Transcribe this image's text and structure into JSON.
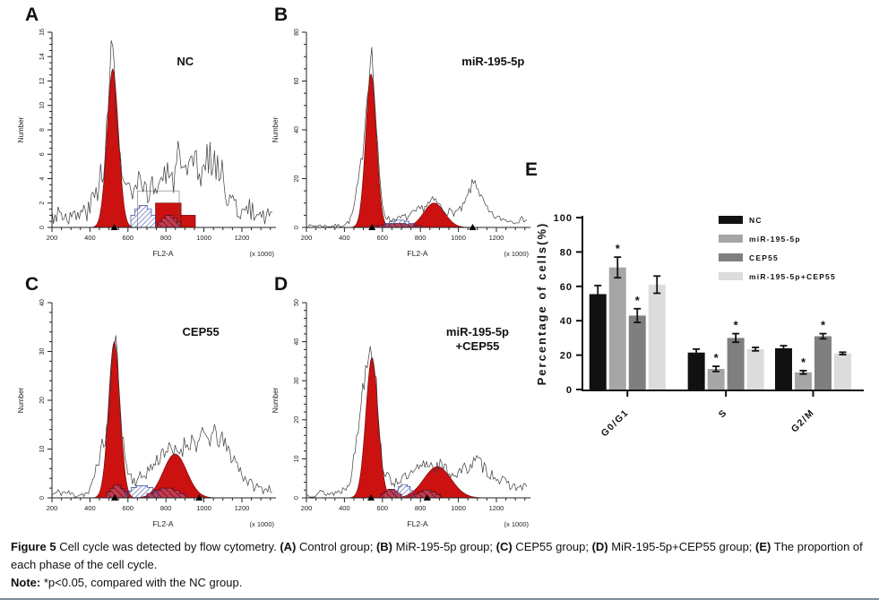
{
  "figure": {
    "panel_letters": [
      "A",
      "B",
      "C",
      "D",
      "E"
    ],
    "caption_segments": [
      {
        "text": "Figure 5 ",
        "bold": true
      },
      {
        "text": "Cell cycle was detected by flow cytometry. ",
        "bold": false
      },
      {
        "text": "(A)",
        "bold": true
      },
      {
        "text": " Control group; ",
        "bold": false
      },
      {
        "text": "(B)",
        "bold": true
      },
      {
        "text": " MiR-195-5p group; ",
        "bold": false
      },
      {
        "text": "(C)",
        "bold": true
      },
      {
        "text": " CEP55 group; ",
        "bold": false
      },
      {
        "text": "(D)",
        "bold": true
      },
      {
        "text": " MiR-195-5p+CEP55 group; ",
        "bold": false
      },
      {
        "text": "(E)",
        "bold": true
      },
      {
        "text": " The proportion of each phase of the cell cycle.",
        "bold": false
      }
    ],
    "note_segments": [
      {
        "text": "Note: ",
        "bold": true
      },
      {
        "text": "*p<0.05, compared with the NC group.",
        "bold": false
      }
    ]
  },
  "colors": {
    "histogram_fill": "#cc1111",
    "histogram_edge": "#6b0606",
    "s_phase_hatch": "#4f5fb2",
    "aggregate_fill": "#c23d52",
    "trace": "#3c3c3c",
    "axis": "#222222"
  },
  "chart_data": [
    {
      "type": "histogram",
      "panel": "A",
      "label_lines": [
        "NC"
      ],
      "ylabel": "Number",
      "xlabel": "FL2-A",
      "x_unit": "(x 1000)",
      "xlim": [
        200,
        1370
      ],
      "xticks": [
        200,
        400,
        600,
        800,
        1000,
        1200
      ],
      "ymax": 16,
      "yticks": [
        0,
        2,
        4,
        6,
        8,
        10,
        12,
        14,
        16
      ],
      "yminor": 4,
      "g1": {
        "center": 520,
        "sigma": 30,
        "height": 13
      },
      "g2": null,
      "red_blocks": [
        [
          745,
          880,
          2
        ],
        [
          880,
          955,
          1
        ]
      ],
      "dark_blocks": [
        [
          757,
          878,
          1
        ]
      ],
      "s_block": [
        615,
        745,
        1.8
      ],
      "outline_box": [
        650,
        870,
        3
      ],
      "markers": [
        528
      ],
      "envelope": [
        [
          200,
          1
        ],
        [
          240,
          1.3
        ],
        [
          280,
          1
        ],
        [
          320,
          0.8
        ],
        [
          360,
          1.2
        ],
        [
          400,
          1.5
        ],
        [
          420,
          2.5
        ],
        [
          440,
          3
        ],
        [
          460,
          5
        ],
        [
          480,
          6
        ],
        [
          500,
          10
        ],
        [
          515,
          15
        ],
        [
          525,
          14
        ],
        [
          540,
          9
        ],
        [
          560,
          5
        ],
        [
          575,
          4
        ],
        [
          600,
          3
        ],
        [
          620,
          2.5
        ],
        [
          640,
          3
        ],
        [
          660,
          3.5
        ],
        [
          680,
          2.5
        ],
        [
          700,
          3
        ],
        [
          720,
          3.5
        ],
        [
          740,
          3
        ],
        [
          760,
          3.5
        ],
        [
          780,
          4
        ],
        [
          800,
          4.5
        ],
        [
          820,
          3.5
        ],
        [
          840,
          4
        ],
        [
          860,
          7
        ],
        [
          875,
          5
        ],
        [
          890,
          3.5
        ],
        [
          910,
          4
        ],
        [
          930,
          4.5
        ],
        [
          950,
          6
        ],
        [
          970,
          4
        ],
        [
          990,
          4.5
        ],
        [
          1010,
          5.5
        ],
        [
          1030,
          6
        ],
        [
          1050,
          5
        ],
        [
          1070,
          5.5
        ],
        [
          1090,
          4.5
        ],
        [
          1110,
          3.5
        ],
        [
          1130,
          2.5
        ],
        [
          1150,
          2
        ],
        [
          1180,
          1.5
        ],
        [
          1210,
          1.2
        ],
        [
          1240,
          1.5
        ],
        [
          1270,
          1
        ],
        [
          1300,
          1.2
        ],
        [
          1330,
          1
        ],
        [
          1360,
          1.5
        ]
      ]
    },
    {
      "type": "histogram",
      "panel": "B",
      "label_lines": [
        "miR-195-5p"
      ],
      "ylabel": "Number",
      "xlabel": "FL2-A",
      "x_unit": "(x 1000)",
      "xlim": [
        200,
        1370
      ],
      "xticks": [
        200,
        400,
        600,
        800,
        1000,
        1200
      ],
      "ymax": 80,
      "yticks": [
        0,
        20,
        40,
        60,
        80
      ],
      "yminor": 4,
      "g1": {
        "center": 540,
        "sigma": 28,
        "height": 63
      },
      "g2": {
        "center": 872,
        "sigma": 55,
        "height": 10
      },
      "red_blocks": [],
      "dark_blocks": [
        [
          557,
          808,
          1.6
        ]
      ],
      "s_block": [
        612,
        765,
        3
      ],
      "outline_box": null,
      "markers": [
        545,
        1075
      ],
      "envelope": [
        [
          200,
          0.5
        ],
        [
          260,
          0.8
        ],
        [
          320,
          0.5
        ],
        [
          380,
          0.8
        ],
        [
          410,
          1.5
        ],
        [
          430,
          3
        ],
        [
          450,
          8
        ],
        [
          465,
          15
        ],
        [
          480,
          22
        ],
        [
          495,
          30
        ],
        [
          510,
          45
        ],
        [
          525,
          58
        ],
        [
          540,
          76
        ],
        [
          552,
          62
        ],
        [
          565,
          45
        ],
        [
          580,
          25
        ],
        [
          595,
          12
        ],
        [
          610,
          6
        ],
        [
          630,
          3.5
        ],
        [
          650,
          3
        ],
        [
          670,
          4
        ],
        [
          690,
          3.5
        ],
        [
          710,
          4.5
        ],
        [
          730,
          4
        ],
        [
          750,
          5
        ],
        [
          770,
          6
        ],
        [
          790,
          7
        ],
        [
          810,
          8
        ],
        [
          830,
          9
        ],
        [
          850,
          10
        ],
        [
          870,
          11
        ],
        [
          890,
          10
        ],
        [
          910,
          8
        ],
        [
          930,
          7
        ],
        [
          950,
          6.5
        ],
        [
          970,
          6
        ],
        [
          990,
          6.5
        ],
        [
          1010,
          7
        ],
        [
          1030,
          9
        ],
        [
          1050,
          13
        ],
        [
          1070,
          17
        ],
        [
          1090,
          19
        ],
        [
          1105,
          16
        ],
        [
          1120,
          12
        ],
        [
          1140,
          9
        ],
        [
          1160,
          6
        ],
        [
          1180,
          5
        ],
        [
          1200,
          4
        ],
        [
          1230,
          3.5
        ],
        [
          1260,
          3
        ],
        [
          1290,
          2.5
        ],
        [
          1320,
          3
        ],
        [
          1350,
          3.5
        ]
      ]
    },
    {
      "type": "histogram",
      "panel": "C",
      "label_lines": [
        "CEP55"
      ],
      "ylabel": "Number",
      "xlabel": "FL2-A",
      "x_unit": "(x 1000)",
      "xlim": [
        200,
        1370
      ],
      "xticks": [
        200,
        400,
        600,
        800,
        1000,
        1200
      ],
      "ymax": 40,
      "yticks": [
        0,
        10,
        20,
        30,
        40
      ],
      "yminor": 5,
      "g1": {
        "center": 528,
        "sigma": 30,
        "height": 32
      },
      "g2": {
        "center": 848,
        "sigma": 62,
        "height": 9
      },
      "red_blocks": [],
      "dark_blocks": [
        [
          487,
          600,
          2.6
        ],
        [
          700,
          905,
          2
        ]
      ],
      "s_block": [
        588,
        760,
        2.5
      ],
      "outline_box": null,
      "markers": [
        530,
        975
      ],
      "envelope": [
        [
          200,
          0.6
        ],
        [
          240,
          1.2
        ],
        [
          280,
          1
        ],
        [
          320,
          0.6
        ],
        [
          360,
          0.8
        ],
        [
          395,
          1
        ],
        [
          415,
          3
        ],
        [
          435,
          7
        ],
        [
          455,
          9
        ],
        [
          470,
          11
        ],
        [
          485,
          13
        ],
        [
          500,
          17
        ],
        [
          515,
          26
        ],
        [
          528,
          33
        ],
        [
          540,
          30
        ],
        [
          555,
          22
        ],
        [
          570,
          13
        ],
        [
          585,
          8
        ],
        [
          600,
          5.5
        ],
        [
          620,
          4
        ],
        [
          640,
          3.5
        ],
        [
          660,
          4
        ],
        [
          680,
          4.5
        ],
        [
          700,
          5.5
        ],
        [
          720,
          6
        ],
        [
          740,
          7
        ],
        [
          760,
          8
        ],
        [
          780,
          9.5
        ],
        [
          800,
          10
        ],
        [
          820,
          9.5
        ],
        [
          840,
          9
        ],
        [
          860,
          9.5
        ],
        [
          880,
          10
        ],
        [
          900,
          11
        ],
        [
          920,
          11.5
        ],
        [
          940,
          12
        ],
        [
          960,
          11
        ],
        [
          980,
          11.5
        ],
        [
          1000,
          13
        ],
        [
          1020,
          12
        ],
        [
          1040,
          12.5
        ],
        [
          1060,
          13
        ],
        [
          1080,
          12
        ],
        [
          1100,
          11.5
        ],
        [
          1120,
          10
        ],
        [
          1140,
          9
        ],
        [
          1160,
          8
        ],
        [
          1180,
          6.5
        ],
        [
          1200,
          5
        ],
        [
          1220,
          4
        ],
        [
          1240,
          3
        ],
        [
          1260,
          2.5
        ],
        [
          1290,
          2
        ],
        [
          1320,
          1.8
        ],
        [
          1350,
          2
        ]
      ]
    },
    {
      "type": "histogram",
      "panel": "D",
      "label_lines": [
        "miR-195-5p",
        "+CEP55"
      ],
      "ylabel": "Number",
      "xlabel": "FL2-A",
      "x_unit": "(x 1000)",
      "xlim": [
        200,
        1370
      ],
      "xticks": [
        200,
        400,
        600,
        800,
        1000,
        1200
      ],
      "ymax": 50,
      "yticks": [
        0,
        10,
        20,
        30,
        40,
        50
      ],
      "yminor": 5,
      "g1": {
        "center": 545,
        "sigma": 32,
        "height": 36
      },
      "g2": {
        "center": 890,
        "sigma": 72,
        "height": 8
      },
      "red_blocks": [],
      "dark_blocks": [
        [
          592,
          700,
          2.2
        ],
        [
          762,
          905,
          2
        ]
      ],
      "s_block": [
        668,
        762,
        3.4
      ],
      "outline_box": null,
      "markers": [
        540,
        835
      ],
      "envelope": [
        [
          200,
          0.8
        ],
        [
          240,
          1
        ],
        [
          280,
          1.4
        ],
        [
          320,
          1
        ],
        [
          360,
          1.4
        ],
        [
          390,
          2
        ],
        [
          410,
          3
        ],
        [
          430,
          5
        ],
        [
          450,
          10
        ],
        [
          470,
          17
        ],
        [
          490,
          26
        ],
        [
          510,
          33
        ],
        [
          525,
          38
        ],
        [
          540,
          40
        ],
        [
          555,
          36
        ],
        [
          570,
          27
        ],
        [
          585,
          16
        ],
        [
          600,
          9
        ],
        [
          620,
          5.5
        ],
        [
          640,
          4.5
        ],
        [
          660,
          4
        ],
        [
          680,
          4.5
        ],
        [
          700,
          5
        ],
        [
          720,
          5
        ],
        [
          740,
          5.5
        ],
        [
          760,
          6
        ],
        [
          780,
          7
        ],
        [
          800,
          7.5
        ],
        [
          820,
          8.5
        ],
        [
          840,
          9
        ],
        [
          860,
          8.5
        ],
        [
          880,
          8
        ],
        [
          900,
          8.5
        ],
        [
          920,
          7.5
        ],
        [
          940,
          7
        ],
        [
          960,
          6.5
        ],
        [
          980,
          6
        ],
        [
          1000,
          6.5
        ],
        [
          1020,
          7
        ],
        [
          1040,
          7.5
        ],
        [
          1060,
          8.5
        ],
        [
          1080,
          9
        ],
        [
          1100,
          9.5
        ],
        [
          1120,
          8.5
        ],
        [
          1140,
          7.5
        ],
        [
          1160,
          6.5
        ],
        [
          1180,
          6
        ],
        [
          1200,
          5.5
        ],
        [
          1220,
          4.5
        ],
        [
          1240,
          4
        ],
        [
          1260,
          3.5
        ],
        [
          1290,
          3
        ],
        [
          1320,
          2.5
        ],
        [
          1350,
          3
        ]
      ]
    },
    {
      "type": "bar",
      "panel": "E",
      "ylabel": "Percentage of cells(%)",
      "ylim": [
        0,
        100
      ],
      "yticks": [
        0,
        20,
        40,
        60,
        80,
        100
      ],
      "categories": [
        "G0/G1",
        "S",
        "G2/M"
      ],
      "series": [
        {
          "name": "NC",
          "color": "#111111",
          "values": [
            55.5,
            21.5,
            24
          ],
          "errors": [
            5,
            2,
            1.5
          ],
          "sig": [
            false,
            false,
            false
          ]
        },
        {
          "name": "miR-195-5p",
          "color": "#a6a6a6",
          "values": [
            71,
            12,
            10
          ],
          "errors": [
            6,
            1.5,
            1
          ],
          "sig": [
            true,
            true,
            true
          ]
        },
        {
          "name": "CEP55",
          "color": "#7f7f7f",
          "values": [
            43,
            30,
            31
          ],
          "errors": [
            4,
            2.5,
            1.5
          ],
          "sig": [
            true,
            true,
            true
          ]
        },
        {
          "name": "miR-195-5p+CEP55",
          "color": "#dcdcdc",
          "values": [
            61,
            23.5,
            21
          ],
          "errors": [
            5,
            1,
            0.7
          ],
          "sig": [
            false,
            false,
            false
          ]
        }
      ],
      "legend_position": "top-right",
      "sig_symbol": "*"
    }
  ]
}
